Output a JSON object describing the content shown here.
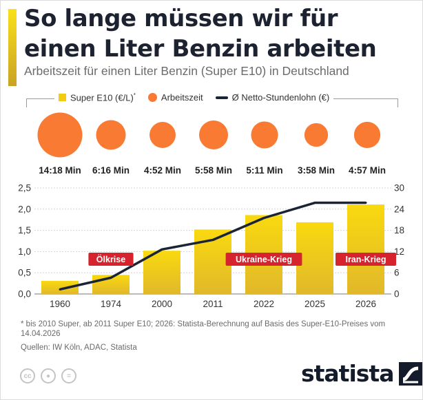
{
  "title": "So lange müssen wir für einen Liter Benzin arbeiten",
  "subtitle": "Arbeitszeit für einen Liter Benzin (Super E10) in Deutschland",
  "legend": {
    "bar": "Super E10 (€/L)",
    "bar_mark": "*",
    "dot": "Arbeitszeit",
    "line": "Ø Netto-Stundenlohn (€)"
  },
  "colors": {
    "bar_top": "#f9d90f",
    "bar_bottom": "#e1b82a",
    "dot": "#f97a33",
    "line": "#1a2435",
    "tag": "#d6232e"
  },
  "chart_data": {
    "type": "bar",
    "categories": [
      "1960",
      "1974",
      "2000",
      "2011",
      "2022",
      "2025",
      "2026"
    ],
    "series": [
      {
        "name": "Super E10 (€/L)",
        "axis": "left",
        "values": [
          0.31,
          0.45,
          1.02,
          1.52,
          1.86,
          1.69,
          2.11
        ]
      },
      {
        "name": "Ø Netto-Stundenlohn (€)",
        "axis": "right",
        "type": "line",
        "values": [
          1.3,
          4.6,
          12.6,
          15.3,
          21.5,
          25.8,
          25.8
        ]
      }
    ],
    "work_time": {
      "name": "Arbeitszeit",
      "labels": [
        "14:18 Min",
        "6:16 Min",
        "4:52 Min",
        "5:58 Min",
        "5:11 Min",
        "3:58 Min",
        "4:57 Min"
      ],
      "minutes": [
        14.3,
        6.27,
        4.87,
        5.97,
        5.18,
        3.97,
        4.95
      ]
    },
    "annotations": [
      {
        "text": "Ölkrise",
        "category": "1974"
      },
      {
        "text": "Ukraine-Krieg",
        "category": "2022"
      },
      {
        "text": "Iran-Krieg",
        "category": "2026"
      }
    ],
    "y_left": {
      "ylim": [
        0,
        2.5
      ],
      "ticks": [
        "0,0",
        "0,5",
        "1,0",
        "1,5",
        "2,0",
        "2,5"
      ]
    },
    "y_right": {
      "ylim": [
        0,
        30
      ],
      "ticks": [
        "0",
        "6",
        "12",
        "18",
        "24",
        "30"
      ]
    },
    "grid": true
  },
  "footnote": "* bis 2010 Super, ab 2011 Super E10; 2026: Statista-Berechnung auf Basis des Super-E10-Preises vom 14.04.2026",
  "source": "Quellen: IW Köln, ADAC, Statista",
  "license_icons": [
    "cc-icon",
    "person-icon",
    "equal-icon"
  ],
  "brand": "statista"
}
